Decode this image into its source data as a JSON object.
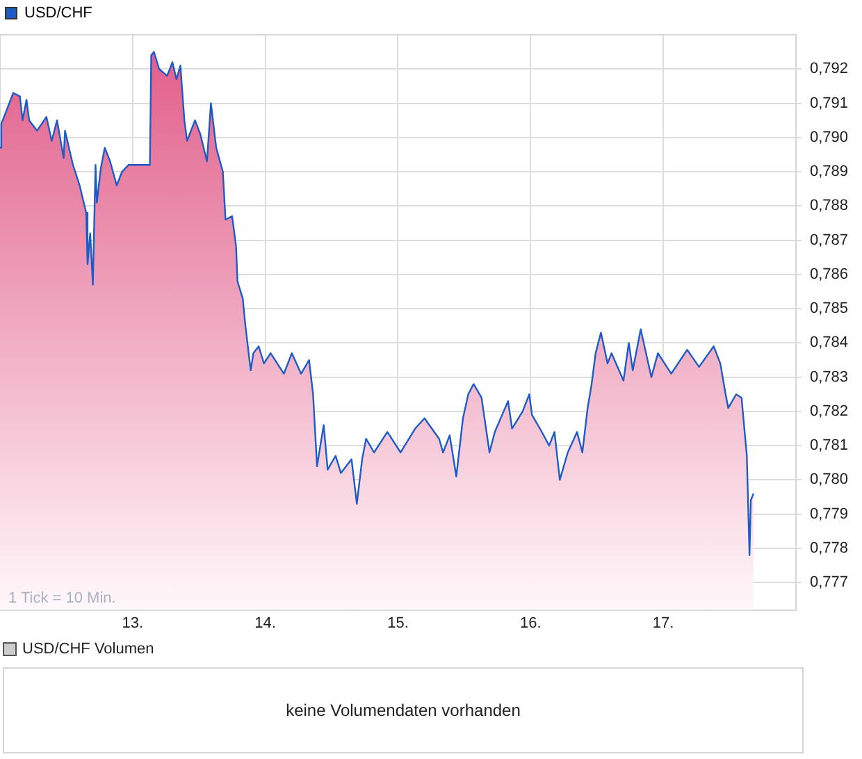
{
  "chart_data": [
    {
      "type": "area",
      "x": [
        12.0,
        12.01,
        12.1,
        12.15,
        12.17,
        12.2,
        12.22,
        12.28,
        12.35,
        12.39,
        12.43,
        12.48,
        12.49,
        12.55,
        12.6,
        12.65,
        12.66,
        12.68,
        12.7,
        12.72,
        12.73,
        12.76,
        12.79,
        12.83,
        12.88,
        12.92,
        12.97,
        13.13,
        13.14,
        13.16,
        13.2,
        13.26,
        13.3,
        13.33,
        13.36,
        13.39,
        13.41,
        13.47,
        13.51,
        13.56,
        13.59,
        13.63,
        13.68,
        13.7,
        13.75,
        13.78,
        13.79,
        13.83,
        13.85,
        13.89,
        13.91,
        13.95,
        13.99,
        14.04,
        14.14,
        14.2,
        14.27,
        14.33,
        14.36,
        14.39,
        14.44,
        14.47,
        14.53,
        14.57,
        14.65,
        14.69,
        14.73,
        14.76,
        14.82,
        14.92,
        15.02,
        15.13,
        15.2,
        15.31,
        15.34,
        15.39,
        15.44,
        15.49,
        15.53,
        15.57,
        15.63,
        15.66,
        15.69,
        15.73,
        15.83,
        15.86,
        15.94,
        15.99,
        16.01,
        16.07,
        16.14,
        16.18,
        16.22,
        16.28,
        16.35,
        16.39,
        16.43,
        16.46,
        16.49,
        16.53,
        16.58,
        16.61,
        16.7,
        16.74,
        16.77,
        16.83,
        16.91,
        16.96,
        17.06,
        17.18,
        17.27,
        17.38,
        17.43,
        17.47,
        17.49,
        17.55,
        17.59,
        17.63,
        17.65,
        17.66,
        17.68
      ],
      "series": [
        {
          "name": "USD/CHF",
          "color": "#1f5bc6",
          "values": [
            0.7897,
            0.7904,
            0.7913,
            0.7912,
            0.7905,
            0.7911,
            0.7905,
            0.7902,
            0.7906,
            0.7899,
            0.7905,
            0.7894,
            0.7902,
            0.7892,
            0.7886,
            0.7878,
            0.7863,
            0.7872,
            0.7857,
            0.7892,
            0.7881,
            0.7891,
            0.7897,
            0.7893,
            0.7886,
            0.789,
            0.7892,
            0.7892,
            0.7924,
            0.7925,
            0.792,
            0.7918,
            0.7922,
            0.7917,
            0.7921,
            0.7905,
            0.7899,
            0.7905,
            0.7901,
            0.7893,
            0.791,
            0.7897,
            0.789,
            0.7876,
            0.7877,
            0.7868,
            0.7858,
            0.7853,
            0.7845,
            0.7832,
            0.7837,
            0.7839,
            0.7834,
            0.7837,
            0.7831,
            0.7837,
            0.7831,
            0.7835,
            0.7825,
            0.7804,
            0.7816,
            0.7803,
            0.7807,
            0.7802,
            0.7806,
            0.7793,
            0.7806,
            0.7812,
            0.7808,
            0.7814,
            0.7808,
            0.7815,
            0.7818,
            0.7812,
            0.7808,
            0.7813,
            0.7801,
            0.7818,
            0.7825,
            0.7828,
            0.7824,
            0.7816,
            0.7808,
            0.7814,
            0.7823,
            0.7815,
            0.782,
            0.7825,
            0.7819,
            0.7815,
            0.781,
            0.7814,
            0.78,
            0.7808,
            0.7814,
            0.7808,
            0.7821,
            0.7828,
            0.7837,
            0.7843,
            0.7834,
            0.7837,
            0.7829,
            0.784,
            0.7832,
            0.7844,
            0.783,
            0.7837,
            0.7831,
            0.7838,
            0.7833,
            0.7839,
            0.7834,
            0.7825,
            0.7821,
            0.7825,
            0.7824,
            0.7807,
            0.7778,
            0.7794,
            0.7796
          ]
        }
      ],
      "xlim": [
        12,
        18
      ],
      "xticks": [
        {
          "value": 13,
          "label": "13."
        },
        {
          "value": 14,
          "label": "14."
        },
        {
          "value": 15,
          "label": "15."
        },
        {
          "value": 16,
          "label": "16."
        },
        {
          "value": 17,
          "label": "17."
        }
      ],
      "ylim": [
        0.7762,
        0.793
      ],
      "yticks": [
        {
          "value": 0.777,
          "label": "0,777"
        },
        {
          "value": 0.778,
          "label": "0,778"
        },
        {
          "value": 0.779,
          "label": "0,779"
        },
        {
          "value": 0.78,
          "label": "0,780"
        },
        {
          "value": 0.781,
          "label": "0,781"
        },
        {
          "value": 0.782,
          "label": "0,782"
        },
        {
          "value": 0.783,
          "label": "0,783"
        },
        {
          "value": 0.784,
          "label": "0,784"
        },
        {
          "value": 0.785,
          "label": "0,785"
        },
        {
          "value": 0.786,
          "label": "0,786"
        },
        {
          "value": 0.787,
          "label": "0,787"
        },
        {
          "value": 0.788,
          "label": "0,788"
        },
        {
          "value": 0.789,
          "label": "0,789"
        },
        {
          "value": 0.79,
          "label": "0,790"
        },
        {
          "value": 0.791,
          "label": "0,791"
        },
        {
          "value": 0.792,
          "label": "0,792"
        }
      ],
      "grid": true,
      "legend": "top left",
      "marker": "none",
      "line_style": "solid",
      "annotations": [
        "1 Tick = 10 Min."
      ]
    },
    {
      "type": "other",
      "title": "USD/CHF Volumen",
      "annotations": [
        "keine Volumendaten vorhanden"
      ]
    }
  ]
}
